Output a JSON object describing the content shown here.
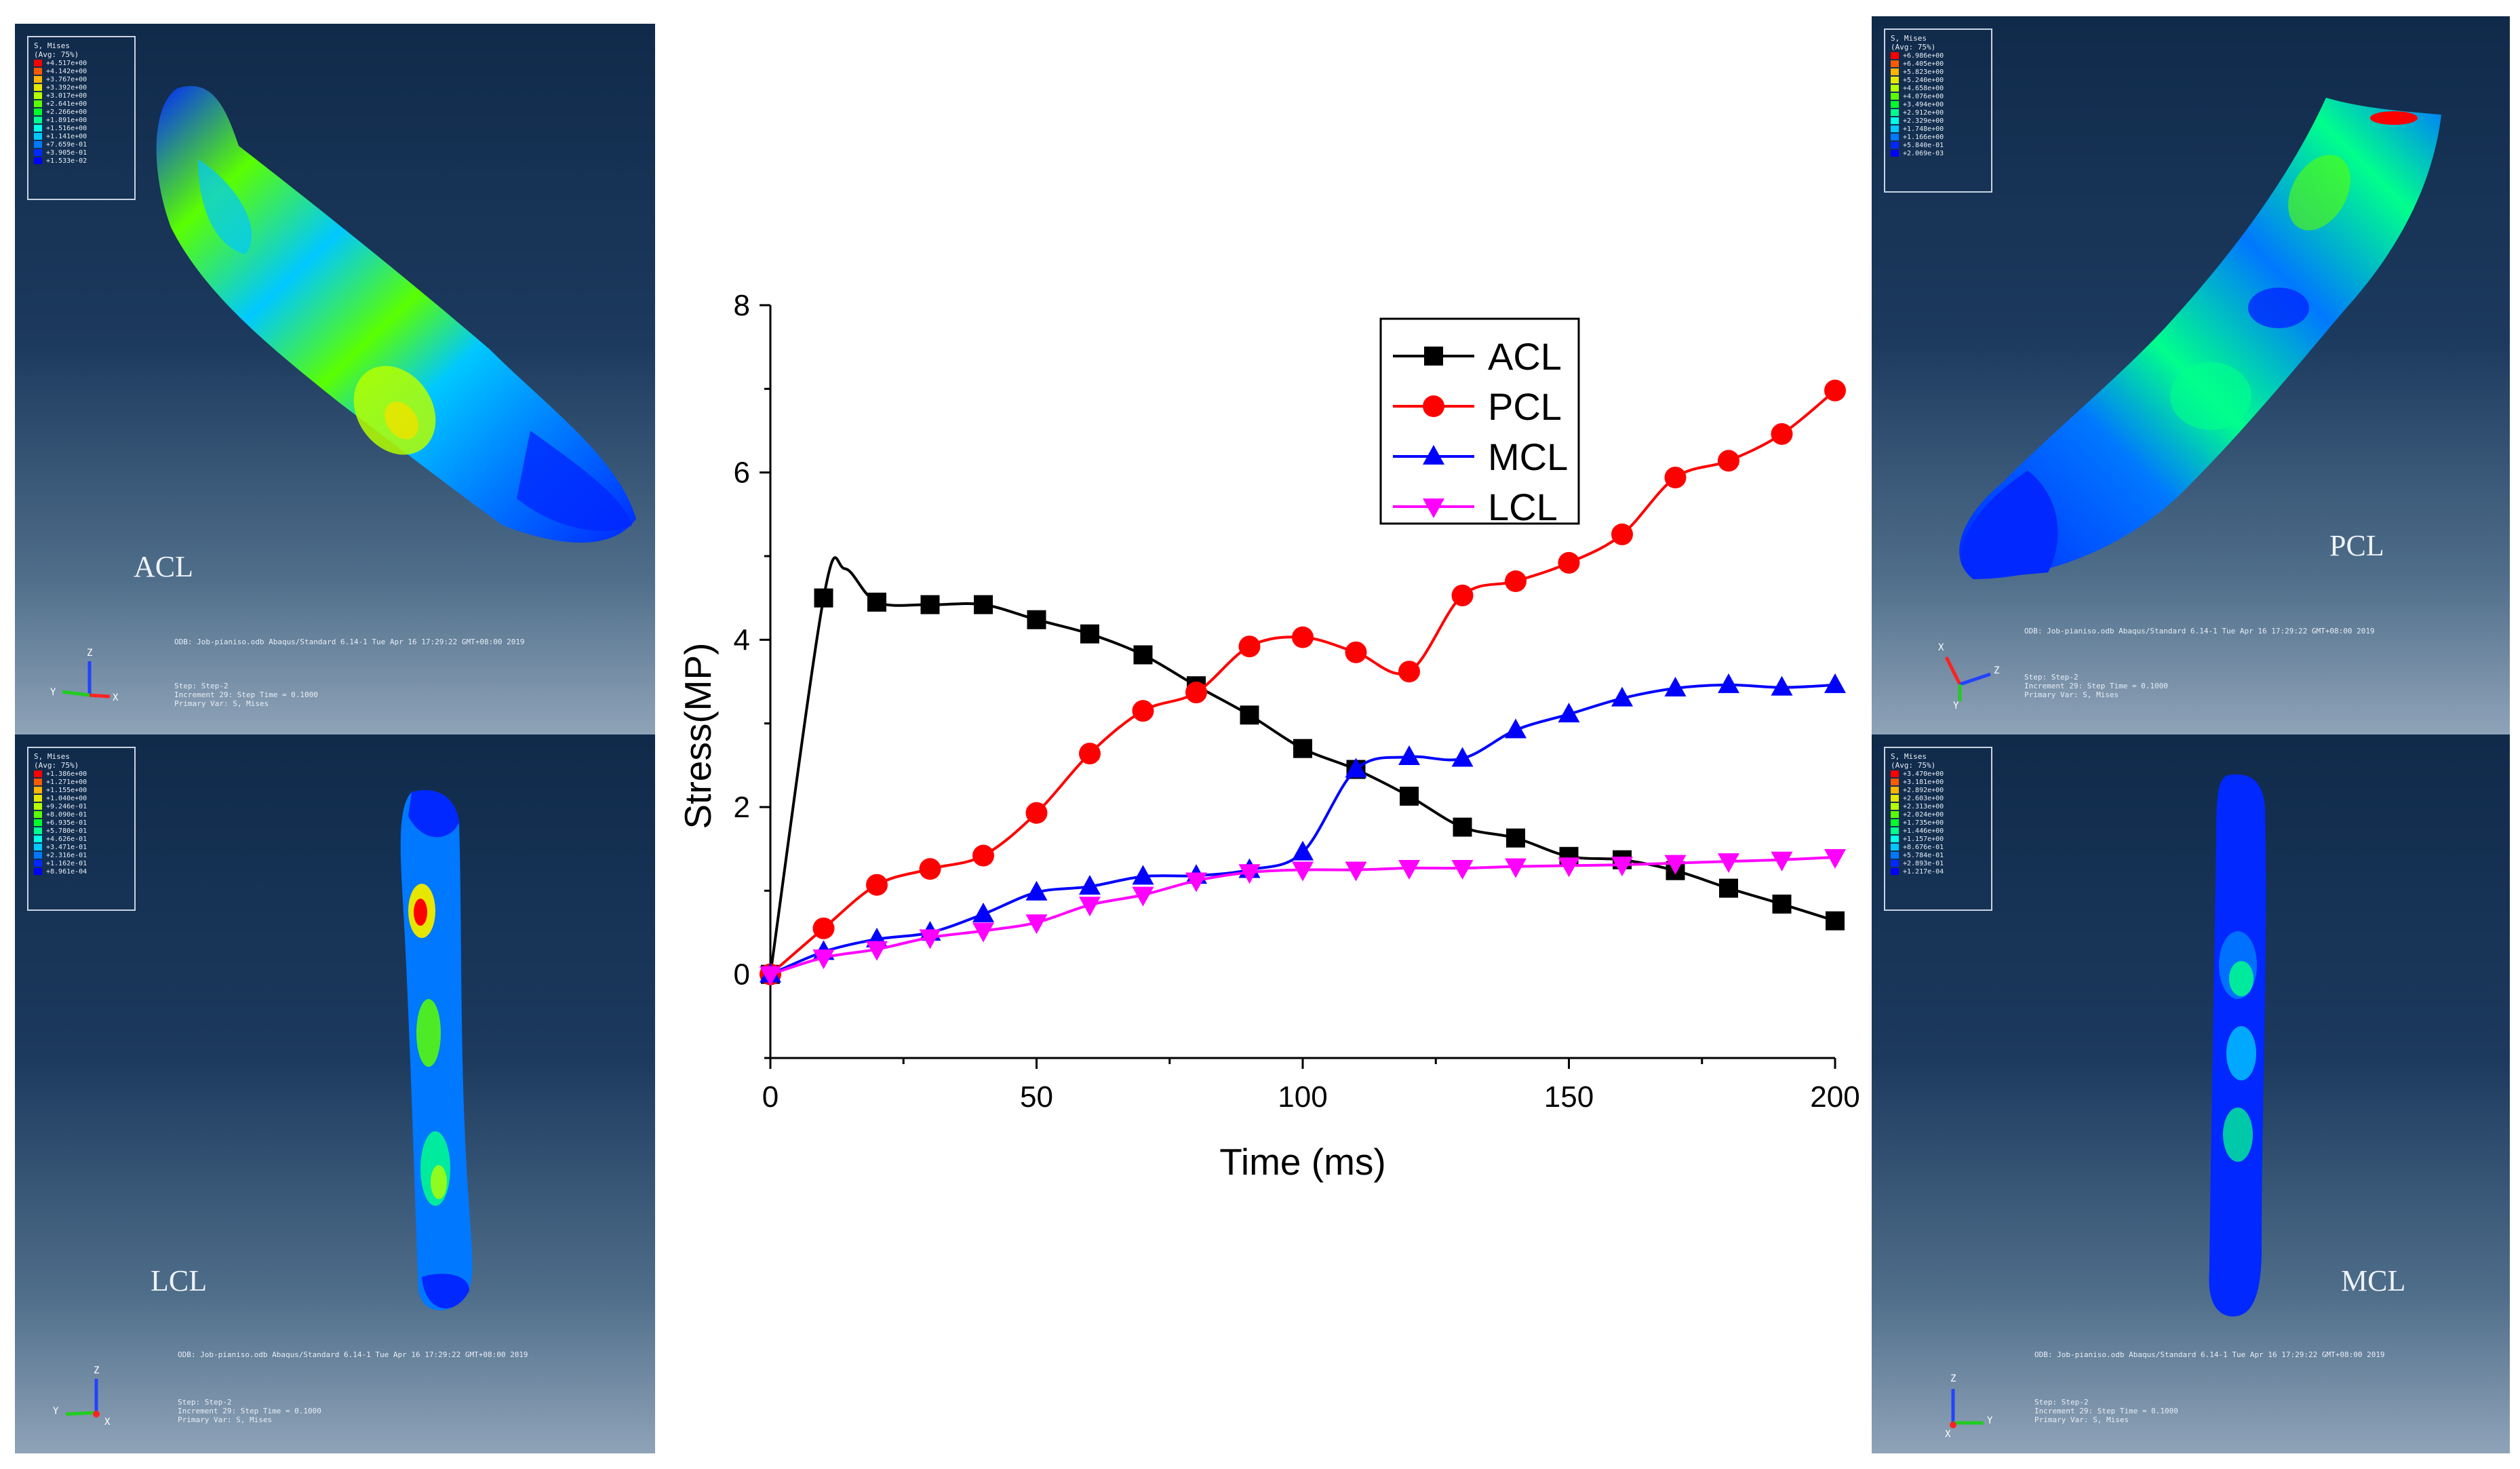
{
  "panels": {
    "acl": {
      "label": "ACL",
      "legend_title": [
        "S, Mises",
        "(Avg: 75%)"
      ],
      "legend_values": [
        "+4.517e+00",
        "+4.142e+00",
        "+3.767e+00",
        "+3.392e+00",
        "+3.017e+00",
        "+2.641e+00",
        "+2.266e+00",
        "+1.891e+00",
        "+1.516e+00",
        "+1.141e+00",
        "+7.659e-01",
        "+3.905e-01",
        "+1.533e-02"
      ],
      "odb_line": "ODB: Job-pianiso.odb    Abaqus/Standard 6.14-1    Tue Apr 16 17:29:22 GMT+08:00 2019",
      "step_info": [
        "Step: Step-2",
        "Increment     29: Step Time =    0.1000",
        "Primary Var: S, Mises"
      ],
      "axes": [
        "Z",
        "Y",
        "X"
      ]
    },
    "pcl": {
      "label": "PCL",
      "legend_title": [
        "S, Mises",
        "(Avg: 75%)"
      ],
      "legend_values": [
        "+6.986e+00",
        "+6.405e+00",
        "+5.823e+00",
        "+5.240e+00",
        "+4.658e+00",
        "+4.076e+00",
        "+3.494e+00",
        "+2.912e+00",
        "+2.329e+00",
        "+1.748e+00",
        "+1.166e+00",
        "+5.840e-01",
        "+2.069e-03"
      ],
      "odb_line": "ODB: Job-pianiso.odb    Abaqus/Standard 6.14-1    Tue Apr 16 17:29:22 GMT+08:00 2019",
      "step_info": [
        "Step: Step-2",
        "Increment     29: Step Time =    0.1000",
        "Primary Var: S, Mises"
      ],
      "axes": [
        "X",
        "Z",
        "Y"
      ]
    },
    "lcl": {
      "label": "LCL",
      "legend_title": [
        "S, Mises",
        "(Avg: 75%)"
      ],
      "legend_values": [
        "+1.386e+00",
        "+1.271e+00",
        "+1.155e+00",
        "+1.040e+00",
        "+9.246e-01",
        "+8.090e-01",
        "+6.935e-01",
        "+5.780e-01",
        "+4.626e-01",
        "+3.471e-01",
        "+2.316e-01",
        "+1.162e-01",
        "+8.961e-04"
      ],
      "odb_line": "ODB: Job-pianiso.odb    Abaqus/Standard 6.14-1    Tue Apr 16 17:29:22 GMT+08:00 2019",
      "step_info": [
        "Step: Step-2",
        "Increment     29: Step Time =    0.1000",
        "Primary Var: S, Mises"
      ],
      "axes": [
        "Z",
        "Y",
        "X"
      ]
    },
    "mcl": {
      "label": "MCL",
      "legend_title": [
        "S, Mises",
        "(Avg: 75%)"
      ],
      "legend_values": [
        "+3.470e+00",
        "+3.181e+00",
        "+2.892e+00",
        "+2.603e+00",
        "+2.313e+00",
        "+2.024e+00",
        "+1.735e+00",
        "+1.446e+00",
        "+1.157e+00",
        "+8.676e-01",
        "+5.784e-01",
        "+2.893e-01",
        "+1.217e-04"
      ],
      "odb_line": "ODB: Job-pianiso.odb    Abaqus/Standard 6.14-1    Tue Apr 16 17:29:22 GMT+08:00 2019",
      "step_info": [
        "Step: Step-2",
        "Increment     29: Step Time =    0.1000",
        "Primary Var: S, Mises"
      ],
      "axes": [
        "Z",
        "Y",
        "X"
      ]
    }
  },
  "contour_colors": [
    "#ff0000",
    "#ff5a00",
    "#ffb400",
    "#e6e600",
    "#b4ff00",
    "#5aff00",
    "#00ff2a",
    "#00ff8c",
    "#00ffe6",
    "#00c8ff",
    "#0078ff",
    "#0028ff",
    "#0000ff"
  ],
  "chart_data": {
    "type": "line",
    "xlabel": "Time (ms)",
    "ylabel": "Stress(MP)",
    "xlim": [
      0,
      200
    ],
    "ylim": [
      -1,
      8
    ],
    "xticks": [
      0,
      50,
      100,
      150,
      200
    ],
    "yticks": [
      0,
      2,
      4,
      6,
      8
    ],
    "legend_position": "top-right",
    "series": [
      {
        "name": "ACL",
        "color": "#000000",
        "marker": "square",
        "x": [
          0,
          10,
          20,
          30,
          40,
          50,
          60,
          70,
          80,
          90,
          100,
          110,
          120,
          130,
          140,
          150,
          160,
          170,
          180,
          190,
          200
        ],
        "y": [
          0,
          4.5,
          4.45,
          4.42,
          4.42,
          4.24,
          4.07,
          3.82,
          3.45,
          3.1,
          2.7,
          2.45,
          2.13,
          1.76,
          1.63,
          1.41,
          1.37,
          1.24,
          1.03,
          0.84,
          0.64
        ],
        "peak": [
          14,
          4.85
        ]
      },
      {
        "name": "PCL",
        "color": "#ff0000",
        "marker": "circle",
        "x": [
          0,
          10,
          20,
          30,
          40,
          50,
          60,
          70,
          80,
          90,
          100,
          110,
          120,
          130,
          140,
          150,
          160,
          170,
          180,
          190,
          200
        ],
        "y": [
          0,
          0.55,
          1.07,
          1.26,
          1.42,
          1.93,
          2.64,
          3.15,
          3.37,
          3.92,
          4.03,
          3.85,
          3.62,
          4.53,
          4.7,
          4.92,
          5.26,
          5.94,
          6.14,
          6.46,
          6.98
        ]
      },
      {
        "name": "MCL",
        "color": "#0000ff",
        "marker": "triangle-up",
        "x": [
          0,
          10,
          20,
          30,
          40,
          50,
          60,
          70,
          80,
          90,
          100,
          110,
          120,
          130,
          140,
          150,
          160,
          170,
          180,
          190,
          200
        ],
        "y": [
          0,
          0.27,
          0.42,
          0.5,
          0.72,
          0.98,
          1.05,
          1.17,
          1.18,
          1.25,
          1.46,
          2.45,
          2.6,
          2.58,
          2.92,
          3.11,
          3.3,
          3.42,
          3.46,
          3.43,
          3.46
        ]
      },
      {
        "name": "LCL",
        "color": "#ff00ff",
        "marker": "triangle-down",
        "x": [
          0,
          10,
          20,
          30,
          40,
          50,
          60,
          70,
          80,
          90,
          100,
          110,
          120,
          130,
          140,
          150,
          160,
          170,
          180,
          190,
          200
        ],
        "y": [
          0,
          0.2,
          0.3,
          0.44,
          0.52,
          0.62,
          0.83,
          0.95,
          1.12,
          1.22,
          1.25,
          1.25,
          1.27,
          1.27,
          1.29,
          1.3,
          1.31,
          1.33,
          1.35,
          1.37,
          1.4
        ]
      }
    ]
  }
}
